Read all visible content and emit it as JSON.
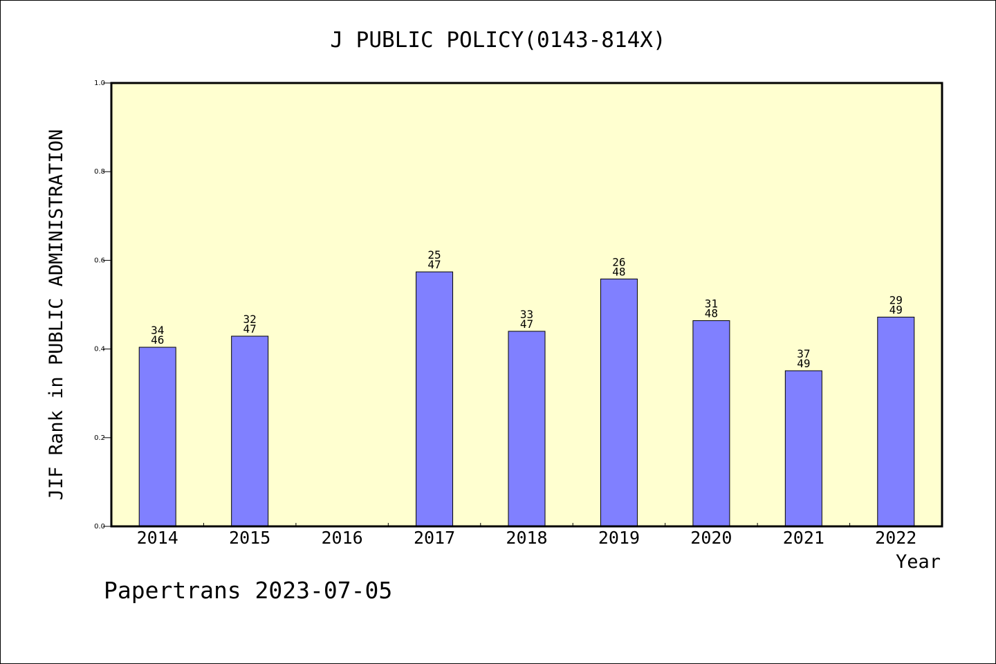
{
  "chart_data": {
    "type": "bar",
    "title": "J PUBLIC POLICY(0143-814X)",
    "xlabel": "Year",
    "ylabel": "JIF Rank in PUBLIC ADMINISTRATION",
    "categories": [
      "2014",
      "2015",
      "2016",
      "2017",
      "2018",
      "2019",
      "2020",
      "2021",
      "2022"
    ],
    "values": [
      0.404,
      0.429,
      null,
      0.574,
      0.44,
      0.558,
      0.464,
      0.351,
      0.472
    ],
    "ranks": [
      34,
      32,
      null,
      25,
      33,
      26,
      31,
      37,
      29
    ],
    "totals": [
      46,
      47,
      null,
      47,
      47,
      48,
      48,
      49,
      49
    ],
    "ylim": [
      0,
      1.0
    ],
    "yticks": [
      "0.0",
      "0.2",
      "0.4",
      "0.6",
      "0.8",
      "1.0"
    ],
    "grid": false,
    "plot_background": "#FFFFD0",
    "bar_color": "#8080FF"
  },
  "footer": "Papertrans 2023-07-05"
}
